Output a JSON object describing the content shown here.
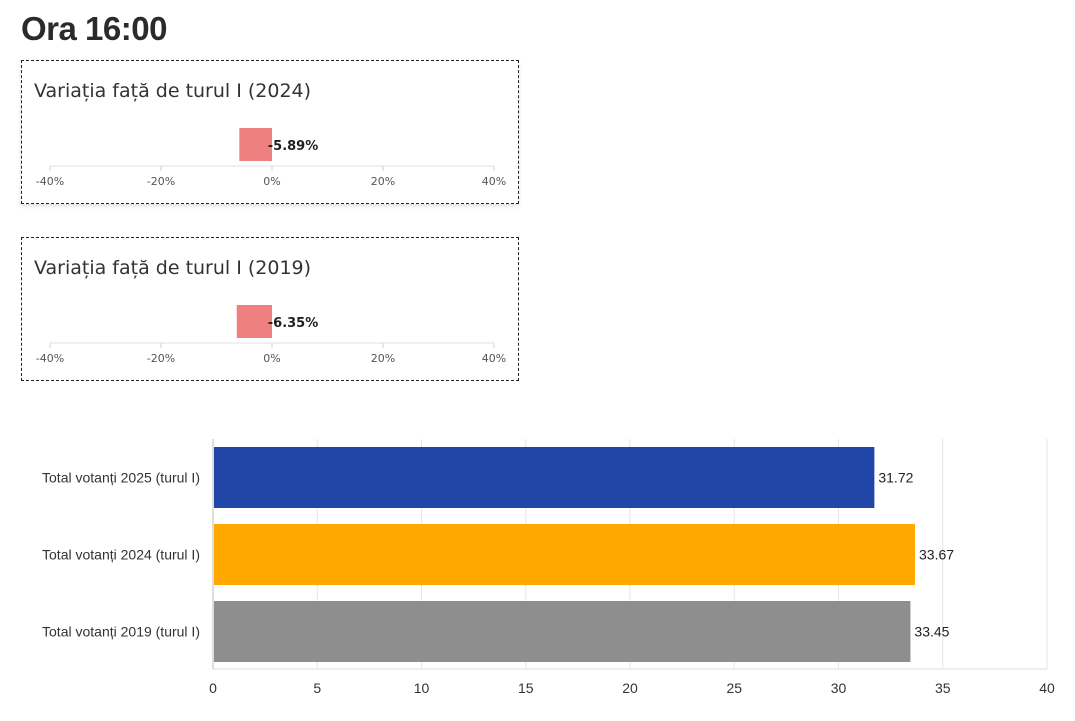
{
  "header": {
    "title": "Ora 16:00"
  },
  "variation_panels": [
    {
      "title": "Variația față de turul I (2024)",
      "value": -5.89,
      "value_label": "-5.89%"
    },
    {
      "title": "Variația față de turul I (2019)",
      "value": -6.35,
      "value_label": "-6.35%"
    }
  ],
  "variation_axis": {
    "ticks": [
      -40,
      -20,
      0,
      20,
      40
    ],
    "tick_labels": [
      "-40%",
      "-20%",
      "0%",
      "20%",
      "40%"
    ],
    "xlim": [
      -40,
      40
    ]
  },
  "colors": {
    "variation_bar": "#ee8080",
    "series_2025": "#2246a8",
    "series_2024": "#ffa800",
    "series_2019": "#8e8e8e",
    "grid": "#e6e6e6"
  },
  "chart_data": [
    {
      "type": "bar",
      "orientation": "horizontal",
      "categories": [
        "Variația față de turul I (2024)"
      ],
      "values": [
        -5.89
      ],
      "title": "Variația față de turul I (2024)",
      "xlim": [
        -40,
        40
      ],
      "tick_labels": [
        "-40%",
        "-20%",
        "0%",
        "20%",
        "40%"
      ]
    },
    {
      "type": "bar",
      "orientation": "horizontal",
      "categories": [
        "Variația față de turul I (2019)"
      ],
      "values": [
        -6.35
      ],
      "title": "Variația față de turul I (2019)",
      "xlim": [
        -40,
        40
      ],
      "tick_labels": [
        "-40%",
        "-20%",
        "0%",
        "20%",
        "40%"
      ]
    },
    {
      "type": "bar",
      "orientation": "horizontal",
      "categories": [
        "Total votanți 2025 (turul I)",
        "Total votanți 2024 (turul I)",
        "Total votanți 2019 (turul I)"
      ],
      "values": [
        31.72,
        33.67,
        33.45
      ],
      "value_labels": [
        "31.72",
        "33.67",
        "33.45"
      ],
      "bar_colors": [
        "#2246a8",
        "#ffa800",
        "#8e8e8e"
      ],
      "xlim": [
        0,
        40
      ],
      "ticks": [
        0,
        5,
        10,
        15,
        20,
        25,
        30,
        35,
        40
      ],
      "grid": true
    }
  ]
}
